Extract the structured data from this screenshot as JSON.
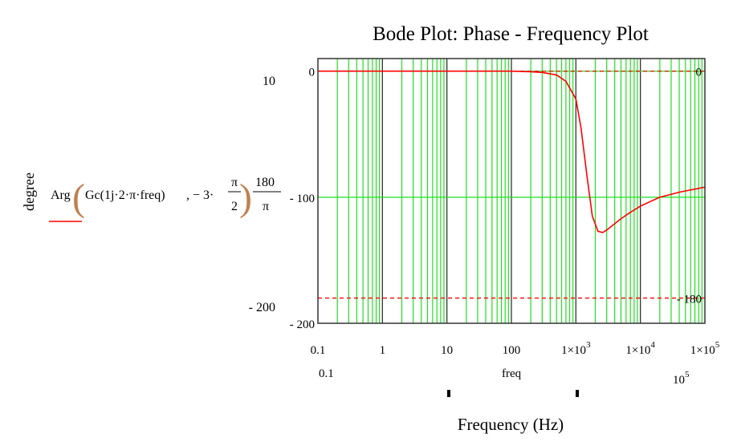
{
  "chart_data": {
    "type": "line",
    "title": "Bode Plot: Phase - Frequency Plot",
    "xlabel": "Frequency (Hz)",
    "x_variable": "freq",
    "ylabel": "degree",
    "x_scale": "log",
    "xlim": [
      0.1,
      100000
    ],
    "ylim": [
      -200,
      10
    ],
    "x_range_labels": {
      "min": "0.1",
      "max_base": "10",
      "max_exp": "5"
    },
    "y_range_labels": {
      "top": "10",
      "bottom": "- 200"
    },
    "x_ticks": [
      {
        "value": 0.1,
        "label": "0.1",
        "exp": ""
      },
      {
        "value": 1,
        "label": "1",
        "exp": ""
      },
      {
        "value": 10,
        "label": "10",
        "exp": ""
      },
      {
        "value": 100,
        "label": "100",
        "exp": ""
      },
      {
        "value": 1000,
        "label": "1×10",
        "exp": "3"
      },
      {
        "value": 10000,
        "label": "1×10",
        "exp": "4"
      },
      {
        "value": 100000,
        "label": "1×10",
        "exp": "5"
      }
    ],
    "y_ticks": [
      {
        "value": 0,
        "label": "0"
      },
      {
        "value": -100,
        "label": "- 100"
      },
      {
        "value": -200,
        "label": "- 200"
      }
    ],
    "grid": true,
    "grid_color": "#22dd22",
    "markers": [
      {
        "value": 0,
        "label": "0"
      },
      {
        "value": -180,
        "label": "- 180"
      }
    ],
    "series": [
      {
        "expression": {
          "fn": "Arg",
          "arg1": "Gc(1j·2·π·freq)",
          "arg2": ", − 3·",
          "frac1_num": "π",
          "frac1_den": "2",
          "frac2_num": "180",
          "frac2_den": "π"
        },
        "color": "#ff0000",
        "x": [
          0.1,
          1,
          10,
          100,
          200,
          300,
          500,
          700,
          1000,
          1200,
          1500,
          1800,
          2200,
          2600,
          3000,
          4000,
          5000,
          7000,
          10000,
          20000,
          40000,
          100000
        ],
        "y": [
          0,
          0,
          0,
          0,
          -0.5,
          -1,
          -3,
          -8,
          -22,
          -45,
          -85,
          -115,
          -127,
          -128,
          -126,
          -121,
          -117,
          -112,
          -107,
          -100,
          -96,
          -92
        ]
      }
    ]
  }
}
